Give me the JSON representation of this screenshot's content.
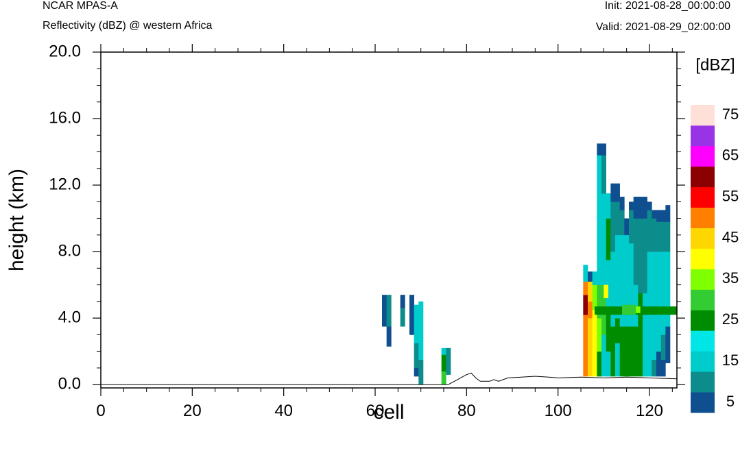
{
  "header": {
    "model": "NCAR MPAS-A",
    "field": "Reflectivity (dBZ) @ western Africa",
    "init": "Init: 2021-08-28_00:00:00",
    "valid": "Valid: 2021-08-29_02:00:00"
  },
  "chart_data": {
    "type": "heatmap",
    "title": "Reflectivity (dBZ) @ western Africa",
    "xlabel": "cell",
    "ylabel": "height (km)",
    "xlim": [
      0,
      126
    ],
    "ylim": [
      -0.2,
      20
    ],
    "xticks": [
      "0",
      "20",
      "40",
      "60",
      "80",
      "100",
      "120"
    ],
    "yticks": [
      "0.0",
      "4.0",
      "8.0",
      "12.0",
      "16.0",
      "20.0"
    ],
    "colorbar": {
      "unit": "[dBZ]",
      "labels": [
        "5",
        "15",
        "25",
        "35",
        "45",
        "55",
        "65",
        "75"
      ],
      "levels": [
        5,
        10,
        15,
        20,
        25,
        30,
        35,
        40,
        45,
        50,
        55,
        60,
        65,
        70,
        75
      ],
      "colors": [
        "#0f4f8f",
        "#0d8c8c",
        "#00cccc",
        "#00e5e5",
        "#008c00",
        "#33cc33",
        "#80ff00",
        "#ffff00",
        "#ffd700",
        "#ff8000",
        "#ff0000",
        "#8b0000",
        "#ff00ff",
        "#9933e6",
        "#ffe0d8"
      ]
    },
    "terrain": {
      "x": [
        76,
        78,
        80,
        81,
        82,
        83,
        85,
        86,
        87,
        89,
        92,
        95,
        98,
        100,
        105,
        110,
        115,
        120,
        126
      ],
      "y": [
        0.0,
        0.3,
        0.6,
        0.7,
        0.4,
        0.2,
        0.2,
        0.3,
        0.2,
        0.4,
        0.45,
        0.5,
        0.45,
        0.4,
        0.45,
        0.4,
        0.45,
        0.4,
        0.35
      ]
    },
    "columns": [
      {
        "x": 62,
        "cells": [
          {
            "y0": 3.5,
            "y1": 5.4,
            "dbz": 7
          }
        ]
      },
      {
        "x": 63,
        "cells": [
          {
            "y0": 2.3,
            "y1": 3.5,
            "dbz": 7
          },
          {
            "y0": 3.5,
            "y1": 5.4,
            "dbz": 12
          }
        ]
      },
      {
        "x": 66,
        "cells": [
          {
            "y0": 4.6,
            "y1": 5.4,
            "dbz": 7
          },
          {
            "y0": 3.5,
            "y1": 4.6,
            "dbz": 12
          }
        ]
      },
      {
        "x": 68,
        "cells": [
          {
            "y0": 3.0,
            "y1": 5.4,
            "dbz": 7
          }
        ]
      },
      {
        "x": 69,
        "cells": [
          {
            "y0": 0.5,
            "y1": 1.0,
            "dbz": 7
          },
          {
            "y0": 1.0,
            "y1": 2.5,
            "dbz": 12
          },
          {
            "y0": 2.5,
            "y1": 4.8,
            "dbz": 17
          }
        ]
      },
      {
        "x": 70,
        "cells": [
          {
            "y0": 0.0,
            "y1": 0.5,
            "dbz": 12
          },
          {
            "y0": 0.5,
            "y1": 1.5,
            "dbz": 12
          },
          {
            "y0": 1.5,
            "y1": 5.0,
            "dbz": 17
          }
        ]
      },
      {
        "x": 75,
        "cells": [
          {
            "y0": 0.0,
            "y1": 0.8,
            "dbz": 32
          },
          {
            "y0": 0.8,
            "y1": 1.8,
            "dbz": 27
          },
          {
            "y0": 1.8,
            "y1": 2.2,
            "dbz": 17
          }
        ]
      },
      {
        "x": 76,
        "cells": [
          {
            "y0": 0.6,
            "y1": 2.2,
            "dbz": 12
          }
        ]
      },
      {
        "x": 106,
        "cells": [
          {
            "y0": 0.5,
            "y1": 4.2,
            "dbz": 52
          },
          {
            "y0": 4.2,
            "y1": 5.4,
            "dbz": 62
          },
          {
            "y0": 5.4,
            "y1": 6.2,
            "dbz": 52
          },
          {
            "y0": 6.2,
            "y1": 7.2,
            "dbz": 17
          }
        ]
      },
      {
        "x": 107,
        "cells": [
          {
            "y0": 0.5,
            "y1": 4.0,
            "dbz": 47
          },
          {
            "y0": 4.0,
            "y1": 5.0,
            "dbz": 52
          },
          {
            "y0": 5.0,
            "y1": 6.2,
            "dbz": 47
          },
          {
            "y0": 6.2,
            "y1": 6.8,
            "dbz": 7
          }
        ]
      },
      {
        "x": 108,
        "cells": [
          {
            "y0": 0.5,
            "y1": 4.5,
            "dbz": 42
          },
          {
            "y0": 4.5,
            "y1": 6.0,
            "dbz": 37
          },
          {
            "y0": 6.0,
            "y1": 6.8,
            "dbz": 17
          }
        ]
      },
      {
        "x": 109,
        "cells": [
          {
            "y0": 0.5,
            "y1": 2.0,
            "dbz": 27
          },
          {
            "y0": 2.0,
            "y1": 4.0,
            "dbz": 37
          },
          {
            "y0": 4.0,
            "y1": 6.0,
            "dbz": 32
          },
          {
            "y0": 6.0,
            "y1": 13.8,
            "dbz": 17
          },
          {
            "y0": 13.8,
            "y1": 14.5,
            "dbz": 7
          }
        ]
      },
      {
        "x": 110,
        "cells": [
          {
            "y0": 0.5,
            "y1": 3.0,
            "dbz": 17
          },
          {
            "y0": 3.0,
            "y1": 6.0,
            "dbz": 32
          },
          {
            "y0": 6.0,
            "y1": 11.5,
            "dbz": 17
          },
          {
            "y0": 11.5,
            "y1": 13.8,
            "dbz": 12
          },
          {
            "y0": 13.8,
            "y1": 14.5,
            "dbz": 7
          }
        ]
      },
      {
        "x": 111,
        "cells": [
          {
            "y0": 0.5,
            "y1": 2.0,
            "dbz": 17
          },
          {
            "y0": 2.0,
            "y1": 4.5,
            "dbz": 27
          },
          {
            "y0": 4.5,
            "y1": 7.5,
            "dbz": 17
          },
          {
            "y0": 7.5,
            "y1": 10.0,
            "dbz": 27
          },
          {
            "y0": 10.0,
            "y1": 11.5,
            "dbz": 17
          }
        ]
      },
      {
        "x": 112,
        "cells": [
          {
            "y0": 0.5,
            "y1": 3.5,
            "dbz": 27
          },
          {
            "y0": 3.5,
            "y1": 8.0,
            "dbz": 17
          },
          {
            "y0": 8.0,
            "y1": 11.0,
            "dbz": 12
          },
          {
            "y0": 11.0,
            "y1": 12.1,
            "dbz": 7
          }
        ]
      },
      {
        "x": 113,
        "cells": [
          {
            "y0": 0.5,
            "y1": 2.5,
            "dbz": 17
          },
          {
            "y0": 2.5,
            "y1": 4.0,
            "dbz": 27
          },
          {
            "y0": 4.0,
            "y1": 9.0,
            "dbz": 17
          },
          {
            "y0": 9.0,
            "y1": 11.0,
            "dbz": 12
          },
          {
            "y0": 11.0,
            "y1": 12.1,
            "dbz": 7
          }
        ]
      },
      {
        "x": 114,
        "cells": [
          {
            "y0": 0.5,
            "y1": 1.5,
            "dbz": 27
          },
          {
            "y0": 1.5,
            "y1": 3.5,
            "dbz": 27
          },
          {
            "y0": 3.5,
            "y1": 9.0,
            "dbz": 17
          },
          {
            "y0": 9.0,
            "y1": 10.5,
            "dbz": 12
          },
          {
            "y0": 10.5,
            "y1": 11.3,
            "dbz": 7
          }
        ]
      },
      {
        "x": 115,
        "cells": [
          {
            "y0": 0.5,
            "y1": 3.5,
            "dbz": 27
          },
          {
            "y0": 3.5,
            "y1": 9.0,
            "dbz": 17
          },
          {
            "y0": 9.0,
            "y1": 10.0,
            "dbz": 7
          }
        ]
      },
      {
        "x": 116,
        "cells": [
          {
            "y0": 0.5,
            "y1": 3.5,
            "dbz": 27
          },
          {
            "y0": 3.5,
            "y1": 8.5,
            "dbz": 17
          },
          {
            "y0": 8.5,
            "y1": 10.5,
            "dbz": 12
          },
          {
            "y0": 10.5,
            "y1": 11.0,
            "dbz": 7
          }
        ]
      },
      {
        "x": 117,
        "cells": [
          {
            "y0": 0.5,
            "y1": 3.5,
            "dbz": 27
          },
          {
            "y0": 3.5,
            "y1": 6.0,
            "dbz": 17
          },
          {
            "y0": 6.0,
            "y1": 10.0,
            "dbz": 12
          },
          {
            "y0": 10.0,
            "y1": 11.3,
            "dbz": 7
          }
        ]
      },
      {
        "x": 118,
        "cells": [
          {
            "y0": 0.5,
            "y1": 3.5,
            "dbz": 27
          },
          {
            "y0": 3.5,
            "y1": 5.5,
            "dbz": 27
          },
          {
            "y0": 5.5,
            "y1": 10.0,
            "dbz": 12
          },
          {
            "y0": 10.0,
            "y1": 11.3,
            "dbz": 7
          }
        ]
      },
      {
        "x": 119,
        "cells": [
          {
            "y0": 0.5,
            "y1": 3.0,
            "dbz": 17
          },
          {
            "y0": 3.0,
            "y1": 5.5,
            "dbz": 17
          },
          {
            "y0": 5.5,
            "y1": 10.0,
            "dbz": 12
          },
          {
            "y0": 10.0,
            "y1": 11.3,
            "dbz": 7
          }
        ]
      },
      {
        "x": 120,
        "cells": [
          {
            "y0": 0.5,
            "y1": 2.0,
            "dbz": 17
          },
          {
            "y0": 2.0,
            "y1": 8.0,
            "dbz": 17
          },
          {
            "y0": 8.0,
            "y1": 10.5,
            "dbz": 12
          },
          {
            "y0": 10.5,
            "y1": 11.0,
            "dbz": 7
          }
        ]
      },
      {
        "x": 121,
        "cells": [
          {
            "y0": 0.5,
            "y1": 1.5,
            "dbz": 12
          },
          {
            "y0": 1.5,
            "y1": 8.0,
            "dbz": 17
          },
          {
            "y0": 8.0,
            "y1": 10.0,
            "dbz": 12
          },
          {
            "y0": 10.0,
            "y1": 10.5,
            "dbz": 7
          }
        ]
      },
      {
        "x": 122,
        "cells": [
          {
            "y0": 0.5,
            "y1": 2.0,
            "dbz": 7
          },
          {
            "y0": 2.0,
            "y1": 8.0,
            "dbz": 17
          },
          {
            "y0": 8.0,
            "y1": 9.8,
            "dbz": 12
          },
          {
            "y0": 9.8,
            "y1": 10.5,
            "dbz": 7
          }
        ]
      },
      {
        "x": 123,
        "cells": [
          {
            "y0": 0.5,
            "y1": 1.5,
            "dbz": 7
          },
          {
            "y0": 1.5,
            "y1": 3.0,
            "dbz": 12
          },
          {
            "y0": 3.0,
            "y1": 8.0,
            "dbz": 17
          },
          {
            "y0": 8.0,
            "y1": 9.8,
            "dbz": 12
          },
          {
            "y0": 9.8,
            "y1": 10.5,
            "dbz": 7
          }
        ]
      },
      {
        "x": 124,
        "cells": [
          {
            "y0": 1.3,
            "y1": 3.5,
            "dbz": 7
          },
          {
            "y0": 3.5,
            "y1": 8.0,
            "dbz": 17
          },
          {
            "y0": 8.0,
            "y1": 9.8,
            "dbz": 12
          },
          {
            "y0": 9.8,
            "y1": 10.8,
            "dbz": 7
          }
        ]
      }
    ],
    "interior_highlights": [
      {
        "x0": 108,
        "x1": 126,
        "y0": 4.2,
        "y1": 4.7,
        "dbz": 27
      },
      {
        "x0": 114,
        "x1": 117,
        "y0": 4.2,
        "y1": 4.8,
        "dbz": 32
      },
      {
        "x0": 117,
        "x1": 118,
        "y0": 4.3,
        "y1": 4.7,
        "dbz": 37
      },
      {
        "x0": 110,
        "x1": 111,
        "y0": 5.2,
        "y1": 6.0,
        "dbz": 42
      }
    ]
  }
}
